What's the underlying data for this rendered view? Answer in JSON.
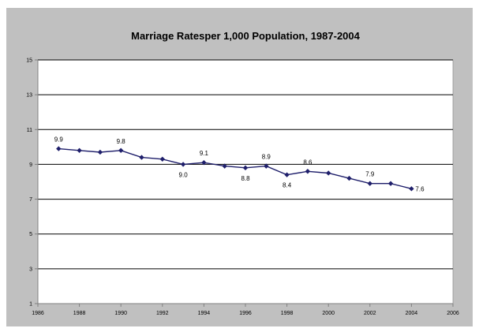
{
  "chart_data": {
    "type": "line",
    "title": "Marriage Ratesper 1,000 Population, 1987-2004",
    "xlabel": "",
    "ylabel": "",
    "xlim": [
      1986,
      2006
    ],
    "ylim": [
      1,
      15
    ],
    "x_ticks": [
      1986,
      1988,
      1990,
      1992,
      1994,
      1996,
      1998,
      2000,
      2002,
      2004,
      2006
    ],
    "x_tick_labels": [
      "1986",
      "1988",
      "1990",
      "1992",
      "1994",
      "1996",
      "1998",
      "2000",
      "2002",
      "2004",
      "2006"
    ],
    "y_ticks": [
      1,
      3,
      5,
      7,
      9,
      11,
      13,
      15
    ],
    "y_tick_labels": [
      "1",
      "3",
      "5",
      "7",
      "9",
      "11",
      "13",
      "15"
    ],
    "grid": "horizontal",
    "legend": "none",
    "series": [
      {
        "color": "#1f1f6b",
        "marker": "diamond",
        "x": [
          1987,
          1988,
          1989,
          1990,
          1991,
          1992,
          1993,
          1994,
          1995,
          1996,
          1997,
          1998,
          1999,
          2000,
          2001,
          2002,
          2003,
          2004
        ],
        "values": [
          9.9,
          9.8,
          9.7,
          9.8,
          9.4,
          9.3,
          9.0,
          9.1,
          8.9,
          8.8,
          8.9,
          8.4,
          8.6,
          8.5,
          8.2,
          7.9,
          7.9,
          7.6
        ]
      }
    ],
    "annotations": [
      {
        "x": 1987,
        "y": 9.9,
        "text": "9.9",
        "pos": "above"
      },
      {
        "x": 1990,
        "y": 9.8,
        "text": "9.8",
        "pos": "above"
      },
      {
        "x": 1993,
        "y": 9.0,
        "text": "9.0",
        "pos": "below"
      },
      {
        "x": 1994,
        "y": 9.1,
        "text": "9.1",
        "pos": "above"
      },
      {
        "x": 1996,
        "y": 8.8,
        "text": "8.8",
        "pos": "below"
      },
      {
        "x": 1997,
        "y": 8.9,
        "text": "8.9",
        "pos": "above"
      },
      {
        "x": 1998,
        "y": 8.4,
        "text": "8.4",
        "pos": "below"
      },
      {
        "x": 1999,
        "y": 8.6,
        "text": "8.6",
        "pos": "above"
      },
      {
        "x": 2002,
        "y": 7.9,
        "text": "7.9",
        "pos": "above"
      },
      {
        "x": 2004,
        "y": 7.6,
        "text": "7.6",
        "pos": "right"
      }
    ],
    "colors": {
      "frame_background": "#c0c0c0",
      "plot_background": "#ffffff",
      "gridline": "#000000",
      "axis": "#808080"
    }
  }
}
